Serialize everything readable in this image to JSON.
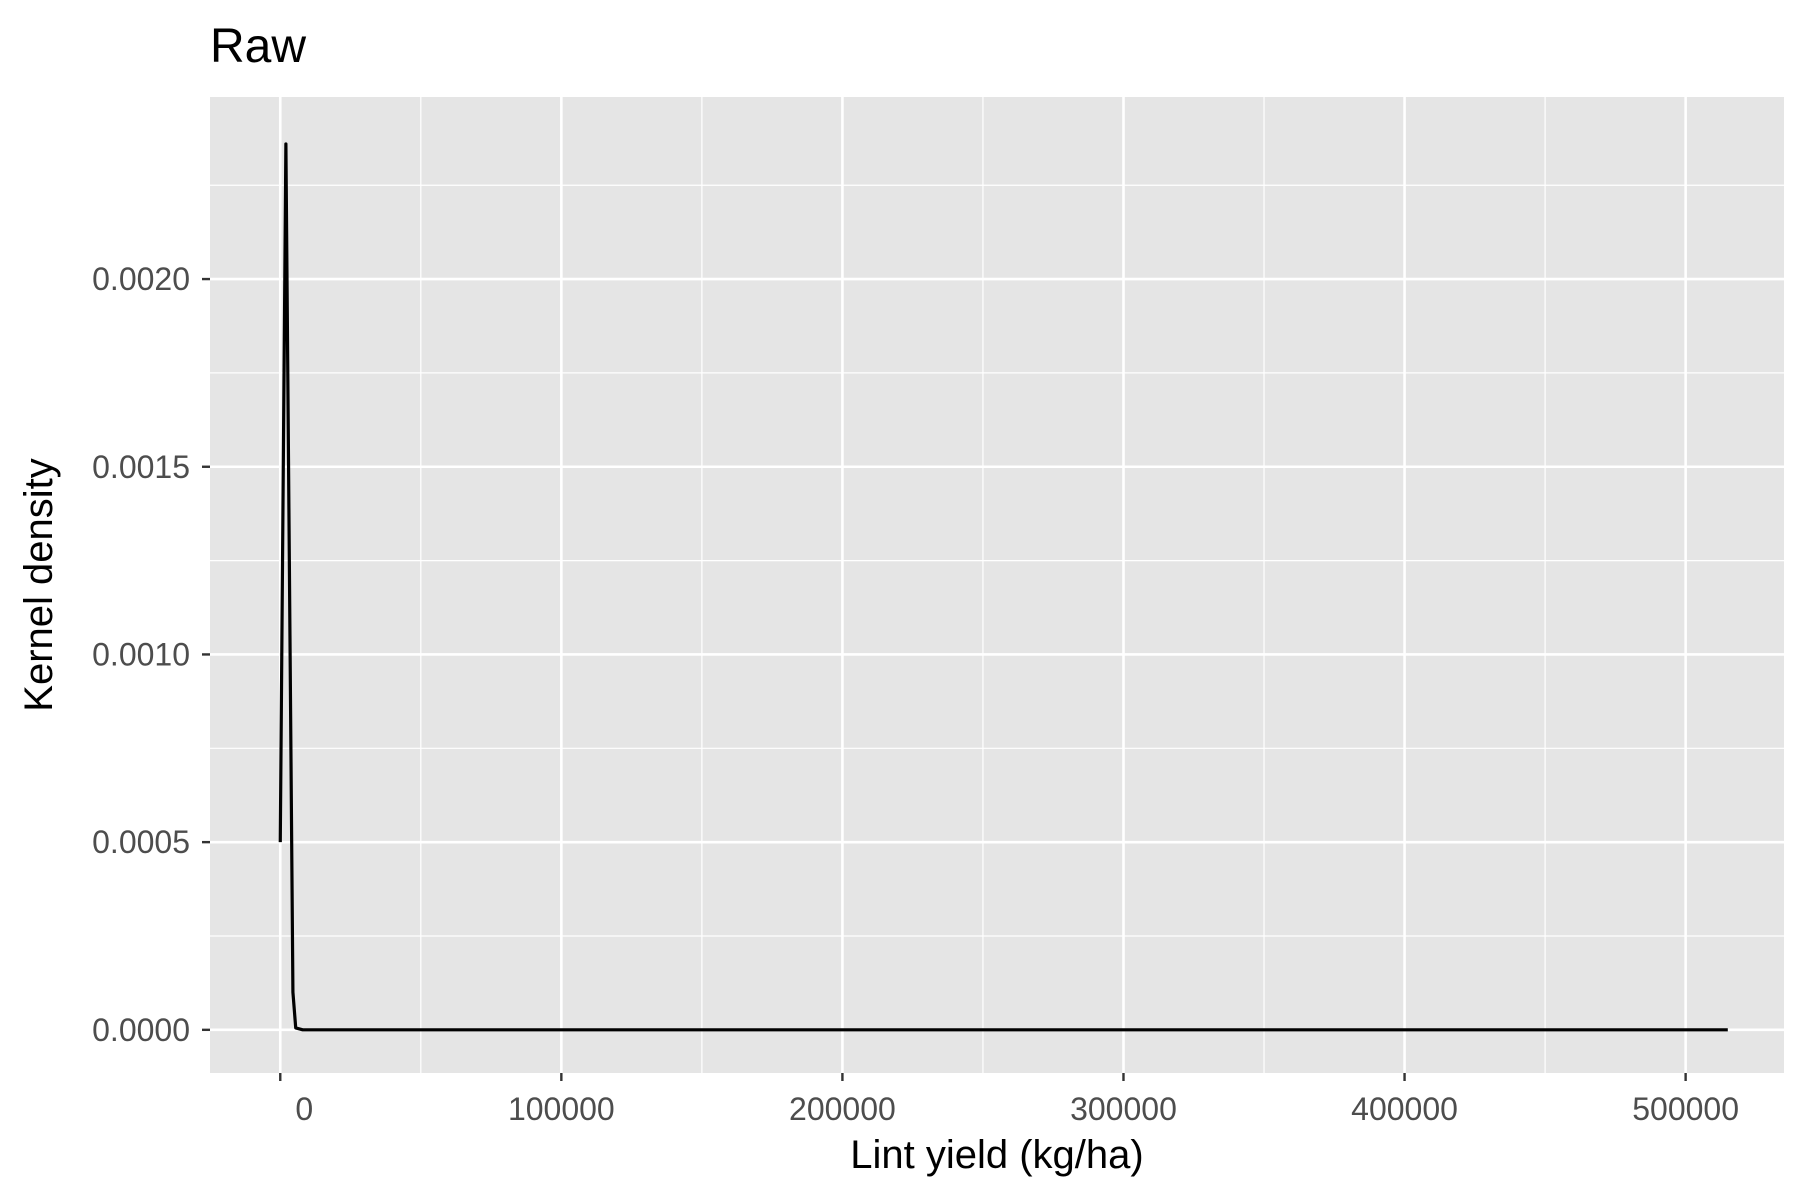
{
  "chart_data": {
    "type": "line",
    "title": "Raw",
    "xlabel": "Lint yield (kg/ha)",
    "ylabel": "Kernel density",
    "xlim": [
      -25000,
      535000
    ],
    "ylim": [
      -0.000115,
      0.002485
    ],
    "x_ticks": [
      0,
      100000,
      200000,
      300000,
      400000,
      500000
    ],
    "x_tick_labels": [
      "0",
      "100000",
      "200000",
      "300000",
      "400000",
      "500000"
    ],
    "y_ticks": [
      0,
      0.0005,
      0.001,
      0.0015,
      0.002
    ],
    "y_tick_labels": [
      "0.0000",
      "0.0005",
      "0.0010",
      "0.0015",
      "0.0020"
    ],
    "grid": true,
    "legend": "none",
    "colors": {
      "panel_background": "#e5e5e5",
      "grid": "#ffffff",
      "line": "#000000",
      "tick_mark": "#333333"
    },
    "series": [
      {
        "x": [
          0,
          2000,
          4500,
          5500,
          8000,
          20000,
          60000,
          100000,
          200000,
          300000,
          400000,
          515000
        ],
        "values": [
          0.0005,
          0.00236,
          0.0001,
          5e-06,
          0,
          0,
          0,
          0,
          0,
          0,
          0,
          0
        ]
      }
    ]
  }
}
